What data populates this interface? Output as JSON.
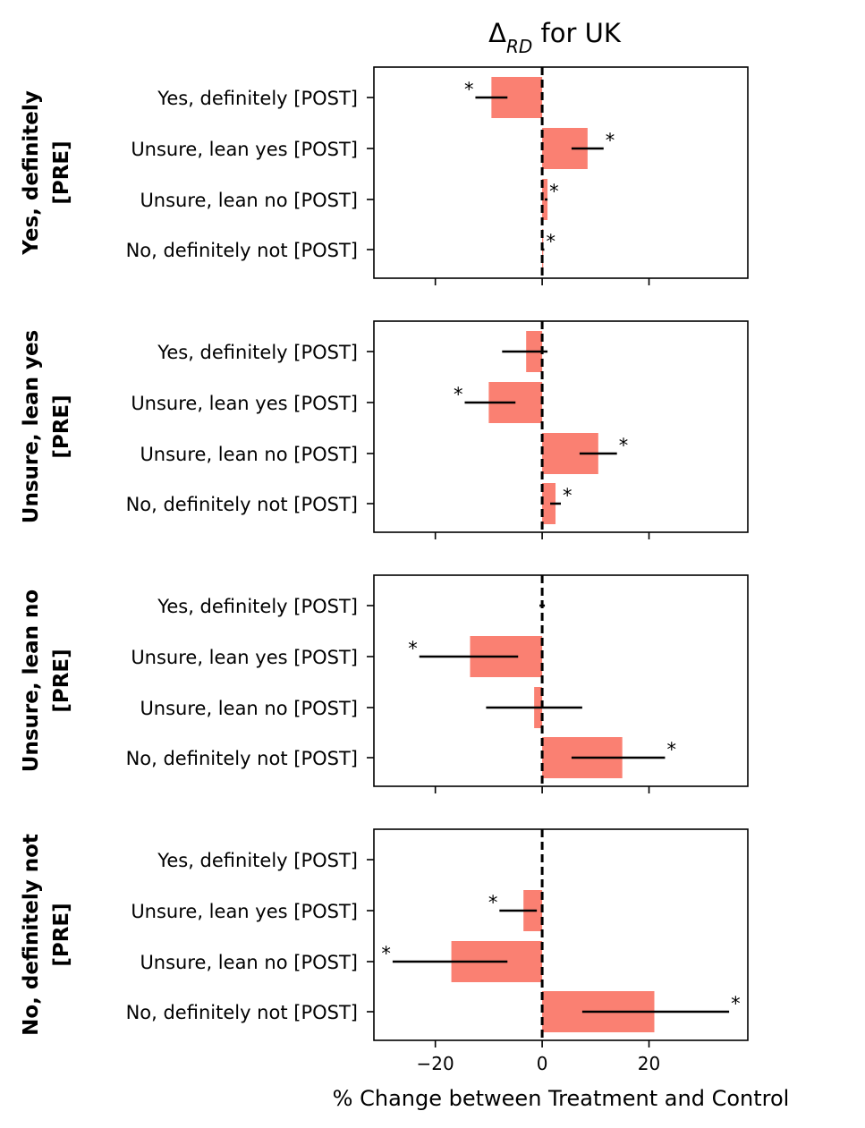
{
  "chart_data": {
    "type": "bar",
    "orientation": "horizontal",
    "title_parts": {
      "delta": "Δ",
      "sub": "RD",
      "rest": " for UK"
    },
    "title": "Δ_RD for UK",
    "xlabel": "% Change between Treatment and Control",
    "xlim": [
      -31.5,
      38.5
    ],
    "xticks": [
      -20,
      0,
      20
    ],
    "xtick_labels": [
      "−20",
      "0",
      "20"
    ],
    "bar_color": "#fa8072",
    "reference_line_x": 0,
    "categories": [
      "Yes, definitely [POST]",
      "Unsure, lean yes [POST]",
      "Unsure, lean no [POST]",
      "No, definitely not [POST]"
    ],
    "panels": [
      {
        "row_label": [
          "Yes, definitely",
          "[PRE]"
        ],
        "values": [
          -9.5,
          8.5,
          1.0,
          0.2
        ],
        "ci_low": [
          -12.5,
          5.5,
          0.5,
          0.0
        ],
        "ci_high": [
          -6.5,
          11.5,
          1.0,
          0.4
        ],
        "significant": [
          true,
          true,
          true,
          true
        ]
      },
      {
        "row_label": [
          "Unsure, lean yes",
          "[PRE]"
        ],
        "values": [
          -3.0,
          -10.0,
          10.5,
          2.5
        ],
        "ci_low": [
          -7.5,
          -14.5,
          7.0,
          1.5
        ],
        "ci_high": [
          1.0,
          -5.0,
          14.0,
          3.5
        ],
        "significant": [
          false,
          true,
          true,
          true
        ]
      },
      {
        "row_label": [
          "Unsure, lean no",
          "[PRE]"
        ],
        "values": [
          0.0,
          -13.5,
          -1.5,
          15.0
        ],
        "ci_low": [
          -0.5,
          -23.0,
          -10.5,
          5.5
        ],
        "ci_high": [
          0.5,
          -4.5,
          7.5,
          23.0
        ],
        "significant": [
          false,
          true,
          false,
          true
        ]
      },
      {
        "row_label": [
          "No, definitely not",
          "[PRE]"
        ],
        "values": [
          0.0,
          -3.5,
          -17.0,
          21.0
        ],
        "ci_low": [
          0.0,
          -8.0,
          -28.0,
          7.5
        ],
        "ci_high": [
          0.0,
          -1.0,
          -6.5,
          35.0
        ],
        "significant": [
          false,
          true,
          true,
          true
        ]
      }
    ]
  }
}
